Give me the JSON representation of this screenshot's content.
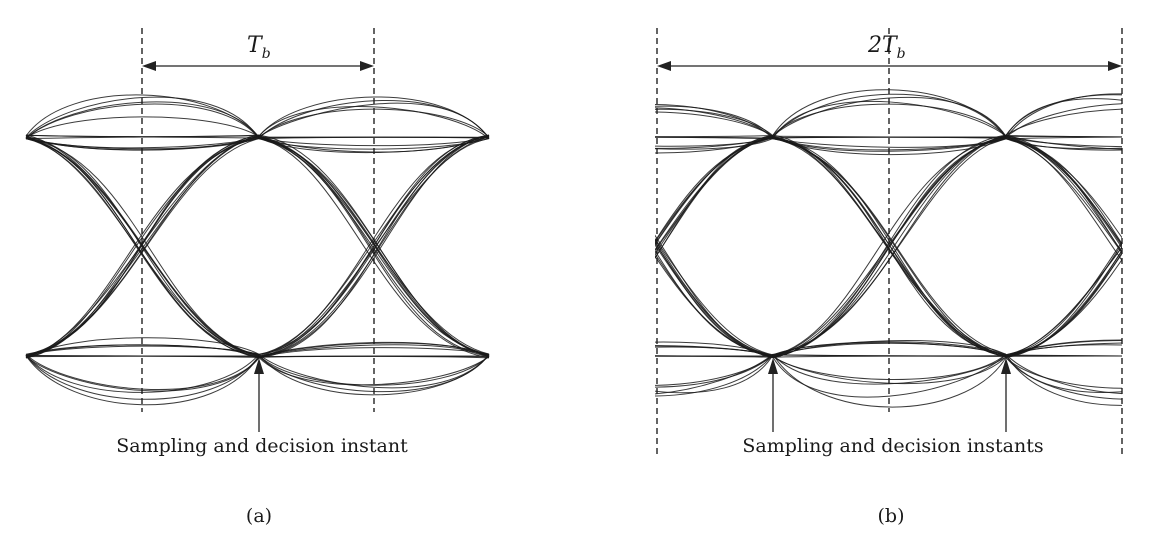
{
  "panels": [
    {
      "id": "a",
      "period_label": {
        "main": "T",
        "sub": "b"
      },
      "caption": "Sampling and decision instant",
      "panel_label": "(a)"
    },
    {
      "id": "b",
      "period_label": {
        "main": "2T",
        "sub": "b"
      },
      "caption": "Sampling and decision instants",
      "panel_label": "(b)"
    }
  ],
  "colors": {
    "ink": "#1a1a1a",
    "background": "#ffffff"
  }
}
